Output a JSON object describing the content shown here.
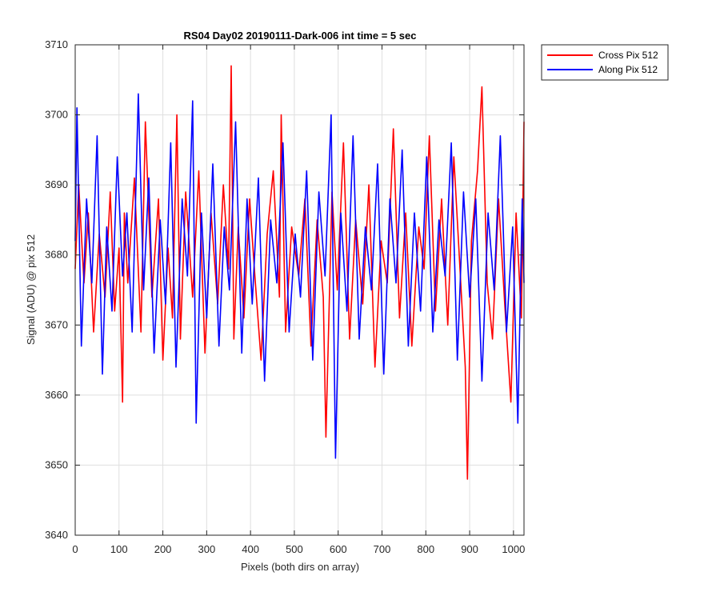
{
  "chart_data": {
    "type": "line",
    "title": "RS04 Day02 20190111-Dark-006 int time = 5 sec",
    "xlabel": "Pixels (both dirs on array)",
    "ylabel": "Signal (ADU) @ pix 512",
    "xlim": [
      0,
      1024
    ],
    "ylim": [
      3640,
      3710
    ],
    "xticks": [
      0,
      100,
      200,
      300,
      400,
      500,
      600,
      700,
      800,
      900,
      1000
    ],
    "yticks": [
      3640,
      3650,
      3660,
      3670,
      3680,
      3690,
      3700,
      3710
    ],
    "grid": true,
    "legend_position": "outside-top-right",
    "series": [
      {
        "name": "Cross Pix 512",
        "color": "#ff0000",
        "x": [
          0,
          8,
          20,
          30,
          42,
          55,
          68,
          80,
          90,
          100,
          108,
          112,
          120,
          135,
          150,
          160,
          175,
          190,
          200,
          212,
          222,
          232,
          240,
          252,
          268,
          282,
          296,
          310,
          325,
          338,
          350,
          356,
          362,
          372,
          385,
          398,
          410,
          424,
          438,
          452,
          466,
          470,
          480,
          494,
          510,
          524,
          538,
          552,
          566,
          572,
          586,
          598,
          612,
          626,
          640,
          656,
          670,
          684,
          698,
          712,
          726,
          740,
          754,
          768,
          784,
          796,
          808,
          822,
          836,
          850,
          864,
          878,
          890,
          895,
          904,
          918,
          928,
          940,
          952,
          966,
          980,
          994,
          1006,
          1018,
          1024
        ],
        "y": [
          3678,
          3690,
          3676,
          3686,
          3669,
          3683,
          3674,
          3689,
          3672,
          3681,
          3659,
          3686,
          3676,
          3691,
          3669,
          3699,
          3674,
          3688,
          3665,
          3681,
          3671,
          3700,
          3668,
          3689,
          3674,
          3692,
          3666,
          3686,
          3673,
          3690,
          3678,
          3707,
          3668,
          3684,
          3671,
          3688,
          3677,
          3665,
          3683,
          3692,
          3674,
          3700,
          3669,
          3684,
          3677,
          3688,
          3667,
          3685,
          3674,
          3654,
          3689,
          3675,
          3696,
          3668,
          3685,
          3673,
          3690,
          3664,
          3682,
          3676,
          3698,
          3671,
          3686,
          3667,
          3684,
          3678,
          3697,
          3672,
          3688,
          3670,
          3694,
          3678,
          3664,
          3648,
          3682,
          3692,
          3704,
          3676,
          3668,
          3688,
          3673,
          3659,
          3686,
          3671,
          3699
        ]
      },
      {
        "name": "Along Pix 512",
        "color": "#0000ff",
        "x": [
          0,
          4,
          14,
          26,
          38,
          50,
          62,
          72,
          84,
          96,
          108,
          118,
          130,
          144,
          156,
          168,
          180,
          194,
          206,
          218,
          230,
          244,
          256,
          268,
          276,
          288,
          300,
          314,
          328,
          340,
          352,
          366,
          380,
          392,
          404,
          418,
          432,
          446,
          460,
          474,
          488,
          502,
          514,
          528,
          542,
          556,
          570,
          584,
          594,
          606,
          620,
          634,
          648,
          662,
          676,
          690,
          704,
          718,
          732,
          746,
          760,
          774,
          788,
          802,
          816,
          830,
          844,
          858,
          872,
          886,
          900,
          914,
          928,
          942,
          956,
          970,
          984,
          998,
          1010,
          1020,
          1024
        ],
        "y": [
          3682,
          3701,
          3667,
          3688,
          3676,
          3697,
          3663,
          3684,
          3672,
          3694,
          3677,
          3686,
          3669,
          3703,
          3675,
          3691,
          3666,
          3685,
          3673,
          3696,
          3664,
          3688,
          3677,
          3702,
          3656,
          3686,
          3671,
          3693,
          3667,
          3684,
          3675,
          3699,
          3666,
          3688,
          3673,
          3691,
          3662,
          3685,
          3676,
          3696,
          3669,
          3683,
          3674,
          3692,
          3665,
          3689,
          3677,
          3700,
          3651,
          3686,
          3672,
          3697,
          3668,
          3684,
          3675,
          3693,
          3663,
          3688,
          3676,
          3695,
          3667,
          3686,
          3672,
          3694,
          3669,
          3685,
          3677,
          3696,
          3665,
          3689,
          3674,
          3688,
          3662,
          3686,
          3675,
          3697,
          3669,
          3684,
          3656,
          3688,
          3676
        ]
      }
    ]
  }
}
